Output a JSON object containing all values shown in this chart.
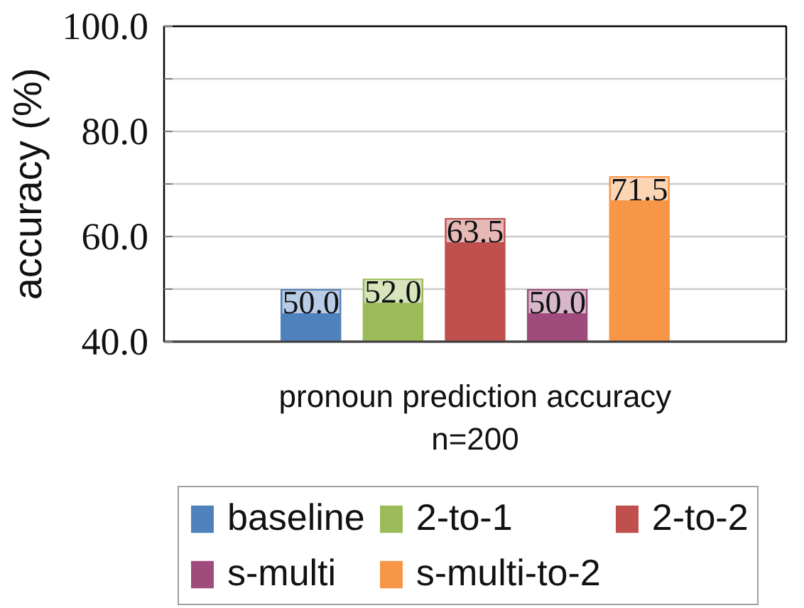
{
  "chart_data": {
    "type": "bar",
    "categories": [
      null
    ],
    "xlabel": "pronoun prediction accuracy\nn=200",
    "ylabel": "accuracy (%)",
    "series": [
      {
        "name": "baseline",
        "color": "#4f81bd",
        "values": [
          50.0
        ],
        "value_labels": [
          "50.0"
        ]
      },
      {
        "name": "2-to-1",
        "color": "#9bbb59",
        "values": [
          52.0
        ],
        "value_labels": [
          "52.0"
        ]
      },
      {
        "name": "2-to-2",
        "color": "#c0504d",
        "values": [
          63.5
        ],
        "value_labels": [
          "63.5"
        ]
      },
      {
        "name": "s-multi",
        "color": "#9f4c7c",
        "values": [
          50.0
        ],
        "value_labels": [
          "50.0"
        ]
      },
      {
        "name": "s-multi-to-2",
        "color": "#f79646",
        "values": [
          71.5
        ],
        "value_labels": [
          "71.5"
        ]
      }
    ],
    "ylim": [
      40,
      100
    ],
    "yticks": [
      {
        "value": 40,
        "label": "40.0"
      },
      {
        "value": 50,
        "label": null
      },
      {
        "value": 60,
        "label": "60.0"
      },
      {
        "value": 70,
        "label": null
      },
      {
        "value": 80,
        "label": "80.0"
      },
      {
        "value": 90,
        "label": null
      },
      {
        "value": 100,
        "label": "100.0"
      }
    ],
    "grid": "y",
    "legend": "bottom"
  }
}
